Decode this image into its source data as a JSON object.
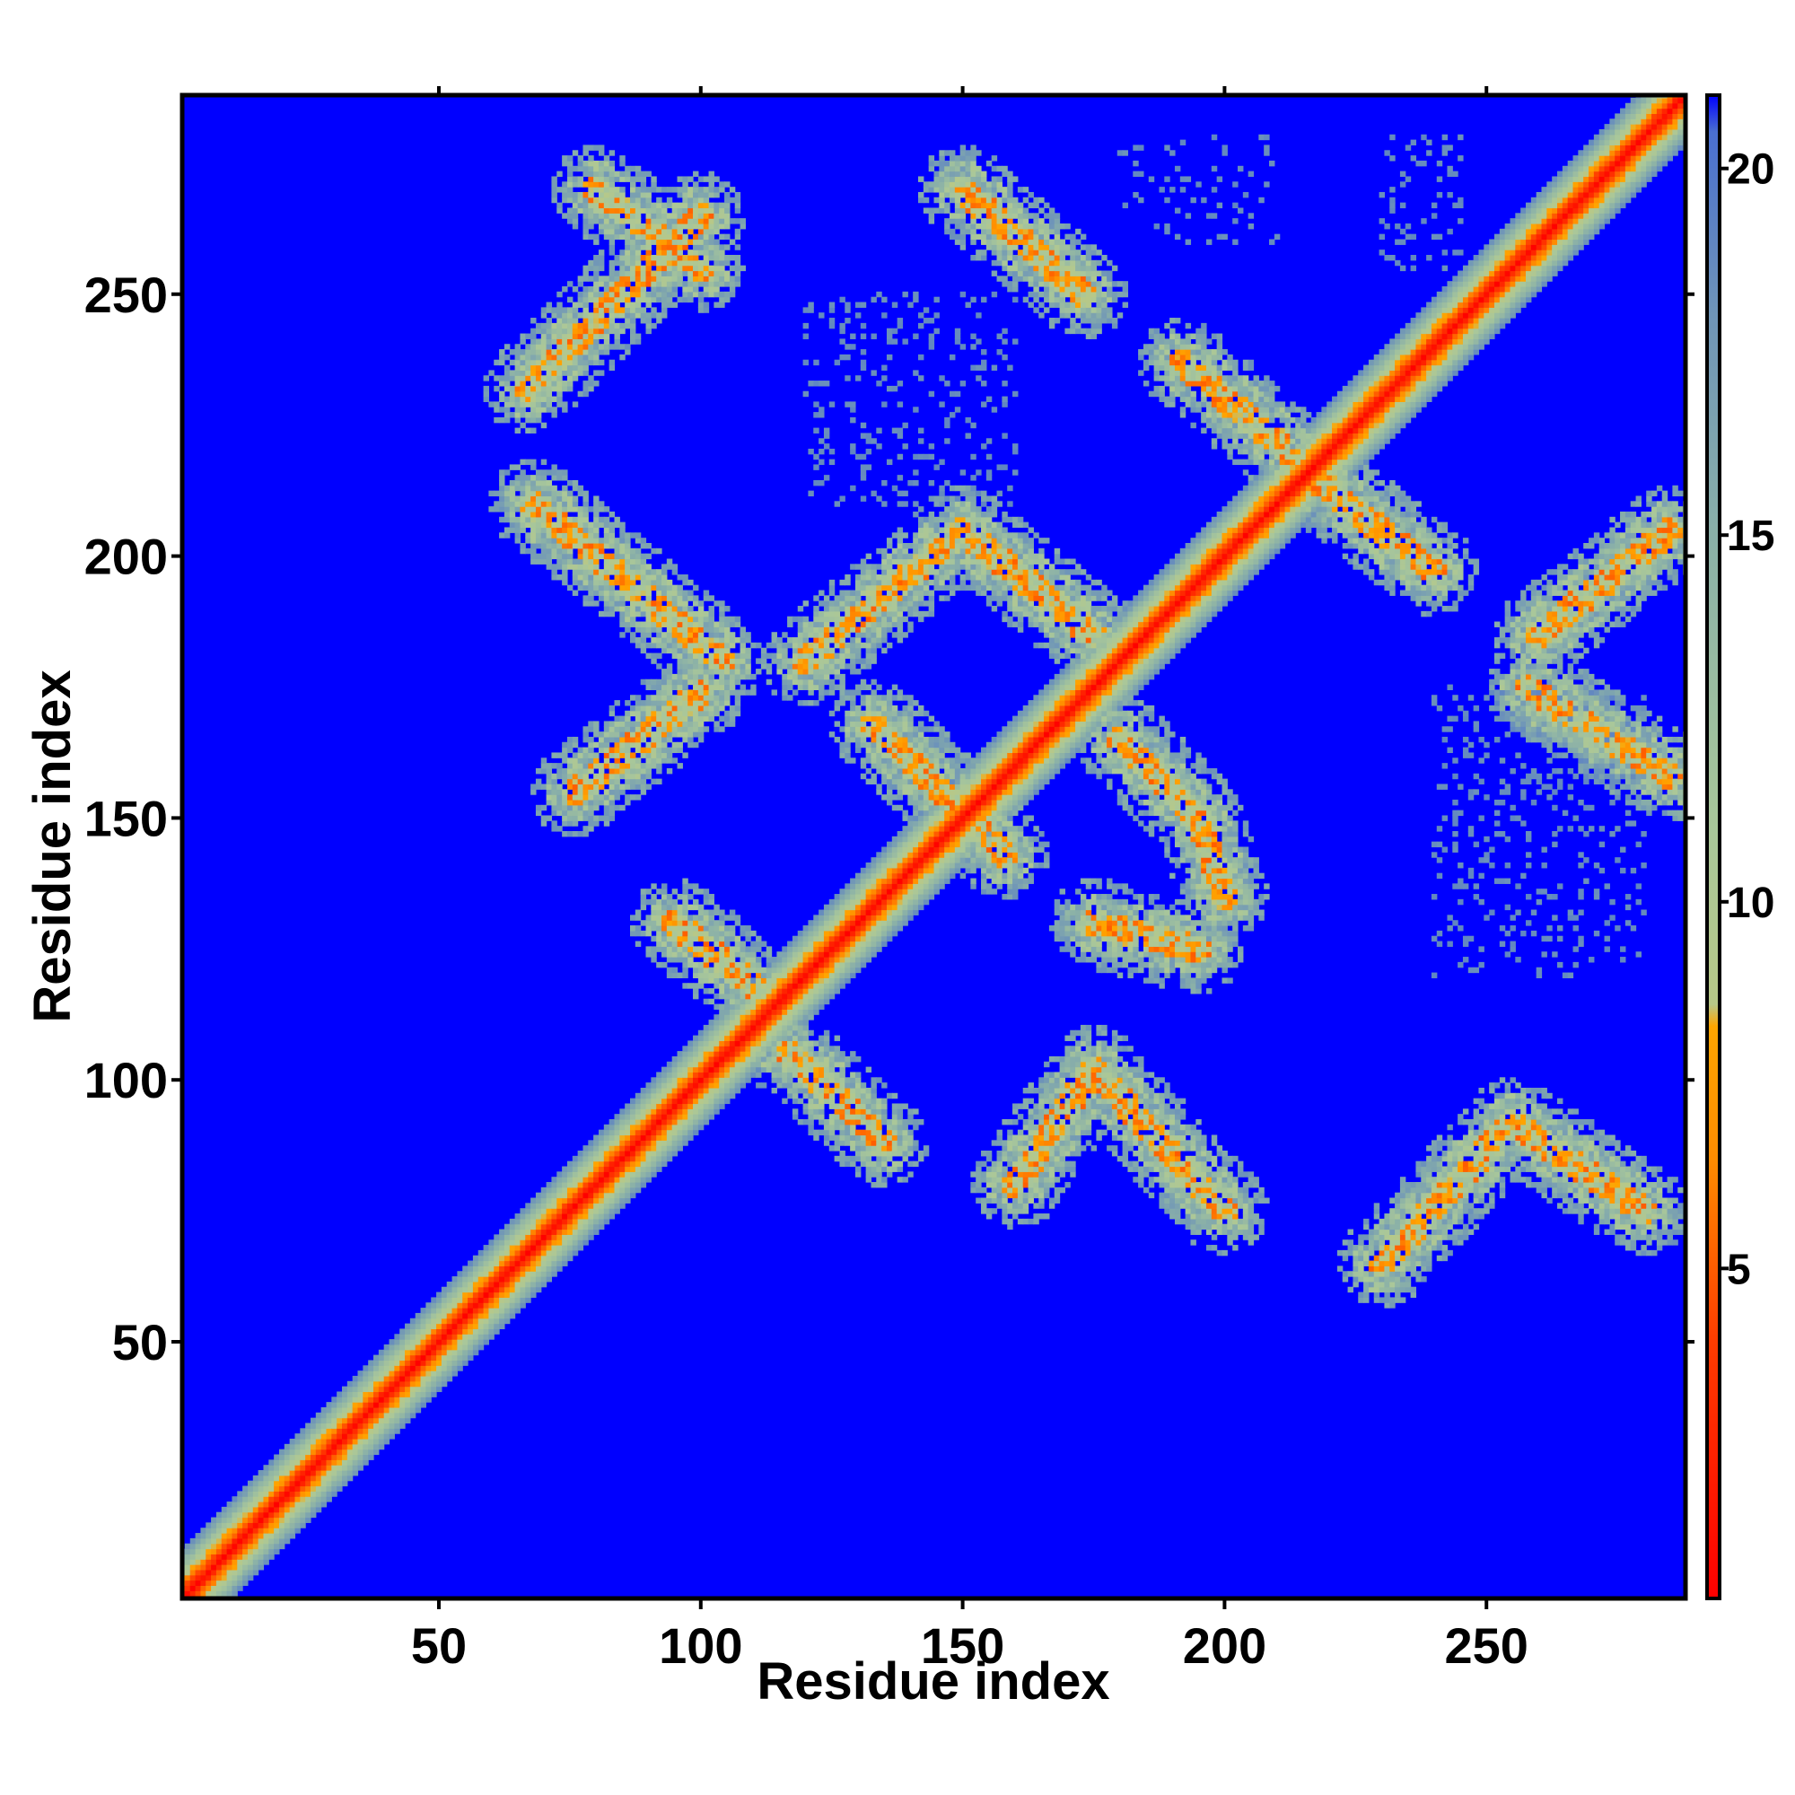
{
  "chart_data": {
    "type": "heatmap",
    "title": "",
    "xlabel": "Residue index",
    "ylabel": "Residue index",
    "xlim": [
      1,
      288
    ],
    "ylim": [
      1,
      288
    ],
    "xticks": [
      50,
      100,
      150,
      200,
      250
    ],
    "yticks": [
      50,
      100,
      150,
      200,
      250
    ],
    "colorbar": {
      "range": [
        0.5,
        21
      ],
      "ticks": [
        5,
        10,
        15,
        20
      ],
      "background_value": 21,
      "colors": [
        {
          "value": 0.5,
          "color": "#ff0000"
        },
        {
          "value": 4,
          "color": "#ff3c00"
        },
        {
          "value": 6.5,
          "color": "#ff8c00"
        },
        {
          "value": 8.3,
          "color": "#ffa500"
        },
        {
          "value": 8.6,
          "color": "#b7c888"
        },
        {
          "value": 11,
          "color": "#a9c79a"
        },
        {
          "value": 15,
          "color": "#8ab0a8"
        },
        {
          "value": 18,
          "color": "#6f95b8"
        },
        {
          "value": 20.5,
          "color": "#4a6fd0"
        },
        {
          "value": 21,
          "color": "#0000ff"
        }
      ]
    },
    "diagonal": {
      "from": 1,
      "to": 288,
      "core_value": 1,
      "half_width": 9
    },
    "contact_bands": [
      {
        "x1": 67,
        "y1": 232,
        "x2": 100,
        "y2": 265
      },
      {
        "x1": 80,
        "y1": 270,
        "x2": 100,
        "y2": 255
      },
      {
        "x1": 68,
        "y1": 210,
        "x2": 104,
        "y2": 180
      },
      {
        "x1": 76,
        "y1": 155,
        "x2": 100,
        "y2": 174
      },
      {
        "x1": 95,
        "y1": 130,
        "x2": 110,
        "y2": 118
      },
      {
        "x1": 117,
        "y1": 105,
        "x2": 135,
        "y2": 88
      },
      {
        "x1": 120,
        "y1": 180,
        "x2": 150,
        "y2": 205
      },
      {
        "x1": 150,
        "y1": 205,
        "x2": 175,
        "y2": 185
      },
      {
        "x1": 133,
        "y1": 168,
        "x2": 158,
        "y2": 143
      },
      {
        "x1": 150,
        "y1": 270,
        "x2": 173,
        "y2": 250
      },
      {
        "x1": 180,
        "y1": 165,
        "x2": 195,
        "y2": 150
      },
      {
        "x1": 195,
        "y1": 150,
        "x2": 200,
        "y2": 135
      },
      {
        "x1": 175,
        "y1": 130,
        "x2": 195,
        "y2": 125
      },
      {
        "x1": 160,
        "y1": 80,
        "x2": 175,
        "y2": 102
      },
      {
        "x1": 175,
        "y1": 102,
        "x2": 200,
        "y2": 75
      },
      {
        "x1": 192,
        "y1": 237,
        "x2": 212,
        "y2": 220
      },
      {
        "x1": 217,
        "y1": 215,
        "x2": 240,
        "y2": 197
      },
      {
        "x1": 230,
        "y1": 65,
        "x2": 255,
        "y2": 92
      },
      {
        "x1": 255,
        "y1": 92,
        "x2": 280,
        "y2": 75
      },
      {
        "x1": 258,
        "y1": 175,
        "x2": 285,
        "y2": 158
      },
      {
        "x1": 260,
        "y1": 185,
        "x2": 285,
        "y2": 205
      }
    ],
    "scatter_regions": [
      {
        "x1": 120,
        "y1": 250,
        "x2": 160,
        "y2": 210
      },
      {
        "x1": 180,
        "y1": 280,
        "x2": 210,
        "y2": 260
      },
      {
        "x1": 240,
        "y1": 175,
        "x2": 280,
        "y2": 120
      },
      {
        "x1": 230,
        "y1": 280,
        "x2": 245,
        "y2": 255
      }
    ]
  }
}
